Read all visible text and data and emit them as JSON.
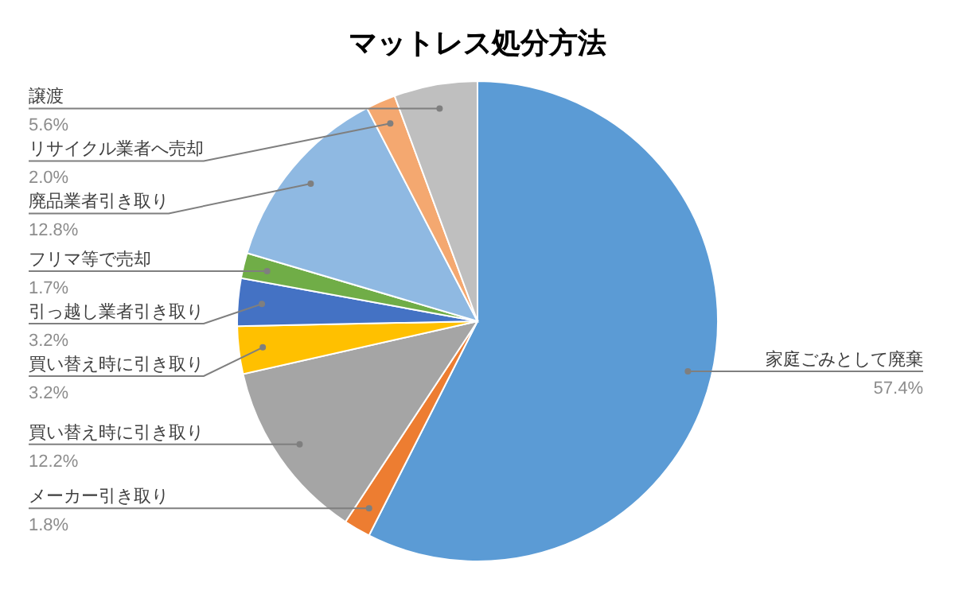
{
  "chart_data": {
    "type": "pie",
    "title": "マットレス処分方法",
    "categories": [
      "家庭ごみとして廃棄",
      "メーカー引き取り",
      "買い替え時に引き取り",
      "買い替え時に引き取り",
      "引っ越し業者引き取り",
      "フリマ等で売却",
      "廃品業者引き取り",
      "リサイクル業者へ売却",
      "譲渡"
    ],
    "values": [
      57.4,
      1.8,
      12.2,
      3.2,
      3.2,
      1.7,
      12.8,
      2.0,
      5.6
    ],
    "value_labels": [
      "57.4%",
      "1.8%",
      "12.2%",
      "3.2%",
      "3.2%",
      "1.7%",
      "12.8%",
      "2.0%",
      "5.6%"
    ],
    "colors": [
      "#5b9bd5",
      "#ed7d31",
      "#a5a5a5",
      "#ffc000",
      "#4472c4",
      "#70ad47",
      "#8fb9e2",
      "#f4a870",
      "#bfbfbf"
    ]
  }
}
